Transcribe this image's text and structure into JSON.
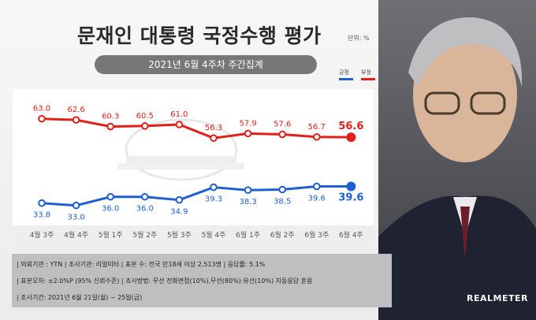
{
  "title": "문재인 대통령 국정수행 평가",
  "unit": "단위: %",
  "subtitle": "2021년 6월 4주차 주간집계",
  "legend": {
    "positive_label": "긍정",
    "negative_label": "부정"
  },
  "colors": {
    "positive": "#1f5fd1",
    "negative": "#e0201a",
    "axis_text": "#555555"
  },
  "chart_data": {
    "type": "line",
    "categories": [
      "4월 3주",
      "4월 4주",
      "5월 1주",
      "5월 2주",
      "5월 3주",
      "5월 4주",
      "6월 1주",
      "6월 2주",
      "6월 3주",
      "6월 4주"
    ],
    "series": [
      {
        "name": "부정",
        "values": [
          63.0,
          62.6,
          60.3,
          60.5,
          61.0,
          56.3,
          57.9,
          57.6,
          56.7,
          56.6
        ]
      },
      {
        "name": "긍정",
        "values": [
          33.8,
          33.0,
          36.0,
          36.0,
          34.9,
          39.3,
          38.3,
          38.5,
          39.6,
          39.6
        ]
      }
    ],
    "value_labels": {
      "negative": [
        "63.0",
        "62.6",
        "60.3",
        "60.5",
        "61.0",
        "56.3",
        "57.9",
        "57.6",
        "56.7",
        "56.6"
      ],
      "positive": [
        "33.8",
        "33.0",
        "36.0",
        "36.0",
        "34.9",
        "39.3",
        "38.3",
        "38.5",
        "39.6",
        "39.6"
      ]
    },
    "ylim": [
      25,
      70
    ],
    "grid": false
  },
  "footer": {
    "line1": "| 의뢰기관 : YTN   |  조사기관: 리얼미터  |  표본 수: 전국 만18세 이상 2,513명  |  응답률: 5.1%",
    "line2": "| 표본오차: ±2.0%P (95% 신뢰수준)  |  조사방법: 무선 전화면접(10%),무선(80%)·유선(10%) 자동응답 혼용",
    "line3": "| 조사기간: 2021년 6월 21일(월) ~ 25일(금)"
  },
  "brand": "REALMETER"
}
